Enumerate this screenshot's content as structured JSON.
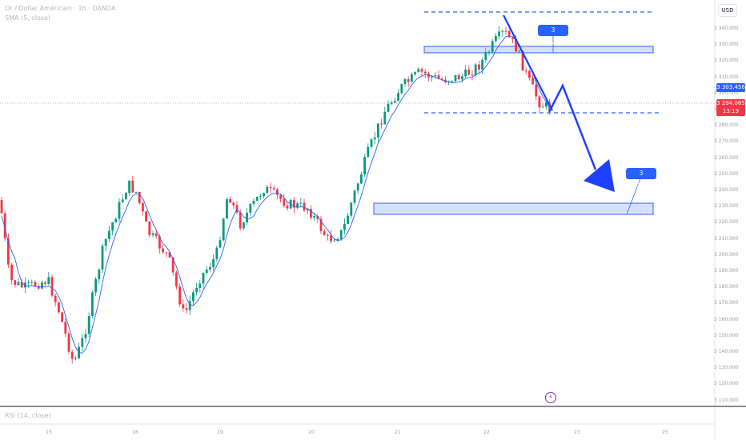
{
  "header": {
    "title": "Or / Dollar Américain · 1h · OANDA",
    "indicator": "SMA (5, close)",
    "currency": "USD"
  },
  "price_axis": {
    "ticks": [
      "3 340,000",
      "3 330,000",
      "3 320,000",
      "3 310,000",
      "3 300,000",
      "3 290,000",
      "3 280,000",
      "3 270,000",
      "3 260,000",
      "3 250,000",
      "3 240,000",
      "3 230,000",
      "3 220,000",
      "3 210,000",
      "3 200,000",
      "3 190,000",
      "3 180,000",
      "3 170,000",
      "3 160,000",
      "3 150,000",
      "3 140,000",
      "3 130,000",
      "3 120,000",
      "3 110,000"
    ],
    "sma_label": "3 303,456",
    "price_label": "3 294,085",
    "countdown": "13:19"
  },
  "time_axis": {
    "ticks": [
      "15",
      "16",
      "19",
      "20",
      "21",
      "22",
      "23",
      "25"
    ]
  },
  "annotations": {
    "upper_target": "3 325,413",
    "lower_target": "3 225,166"
  },
  "rsi_pane": {
    "label": "RSI (14, close)"
  },
  "colors": {
    "up": "#089981",
    "down": "#f23645",
    "sma": "#2962ff",
    "zone_fill": "#d6e0ff",
    "zone_border": "#2962ff",
    "price_line": "#f23645"
  },
  "icons": {
    "bolt": "lightning-icon"
  }
}
